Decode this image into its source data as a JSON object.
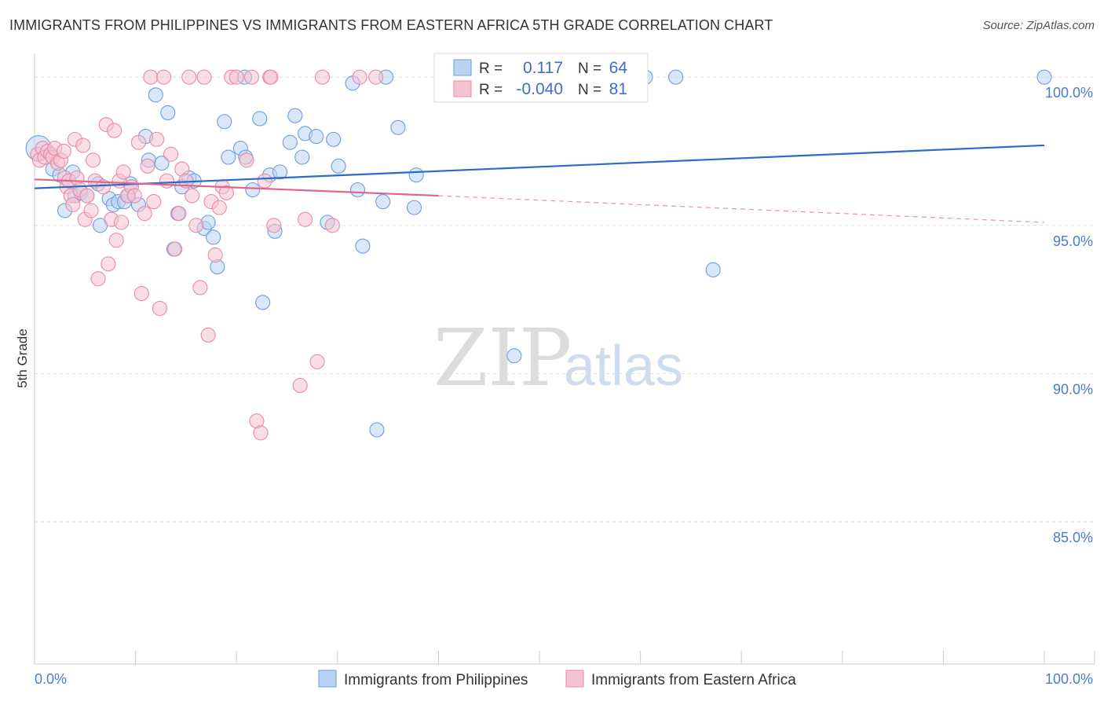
{
  "chart_data": {
    "type": "scatter",
    "title": "IMMIGRANTS FROM PHILIPPINES VS IMMIGRANTS FROM EASTERN AFRICA 5TH GRADE CORRELATION CHART",
    "source": "Source: ZipAtlas.com",
    "xlabel": "",
    "ylabel": "5th Grade",
    "xlim": [
      0,
      100
    ],
    "ylim": [
      80.2,
      100.8
    ],
    "x_tick_labels": [
      "0.0%",
      "100.0%"
    ],
    "y_ticks": [
      85,
      90,
      95,
      100
    ],
    "y_tick_labels": [
      "85.0%",
      "90.0%",
      "95.0%",
      "100.0%"
    ],
    "grid": true,
    "legend": {
      "position": "top-center",
      "rows": [
        {
          "r_label": "R =",
          "r_value": "0.117",
          "n_label": "N =",
          "n_value": "64"
        },
        {
          "r_label": "R =",
          "r_value": "-0.040",
          "n_label": "N =",
          "n_value": "81"
        }
      ]
    },
    "series": [
      {
        "name": "Immigrants from Philippines",
        "color": "#6b9ee0",
        "fill": "#bad3f2",
        "trend_color": "#2b6cc7",
        "trend": {
          "x": [
            0,
            100
          ],
          "y": [
            96.25,
            97.7
          ]
        },
        "points": [
          [
            0.4,
            97.6
          ],
          [
            1.8,
            96.9
          ],
          [
            2.5,
            96.7
          ],
          [
            3.0,
            95.5
          ],
          [
            3.8,
            96.8
          ],
          [
            4.0,
            96.0
          ],
          [
            4.6,
            96.1
          ],
          [
            5.2,
            96.0
          ],
          [
            6.3,
            96.4
          ],
          [
            6.5,
            95.0
          ],
          [
            7.4,
            95.9
          ],
          [
            7.8,
            95.7
          ],
          [
            8.3,
            95.8
          ],
          [
            8.9,
            95.8
          ],
          [
            9.3,
            96.0
          ],
          [
            9.5,
            96.4
          ],
          [
            10.3,
            95.7
          ],
          [
            11.0,
            98.0
          ],
          [
            11.3,
            97.2
          ],
          [
            12.0,
            99.4
          ],
          [
            12.6,
            97.1
          ],
          [
            13.2,
            98.8
          ],
          [
            13.8,
            94.2
          ],
          [
            14.2,
            95.4
          ],
          [
            14.6,
            96.3
          ],
          [
            15.3,
            96.6
          ],
          [
            15.8,
            96.5
          ],
          [
            16.8,
            94.9
          ],
          [
            17.2,
            95.1
          ],
          [
            17.7,
            94.6
          ],
          [
            18.1,
            93.6
          ],
          [
            18.8,
            98.5
          ],
          [
            19.2,
            97.3
          ],
          [
            20.4,
            97.6
          ],
          [
            20.8,
            100.0
          ],
          [
            20.9,
            97.3
          ],
          [
            21.6,
            96.2
          ],
          [
            22.3,
            98.6
          ],
          [
            22.6,
            92.4
          ],
          [
            23.3,
            96.7
          ],
          [
            23.8,
            94.8
          ],
          [
            24.3,
            96.8
          ],
          [
            25.3,
            97.8
          ],
          [
            25.8,
            98.7
          ],
          [
            26.5,
            97.3
          ],
          [
            26.8,
            98.1
          ],
          [
            27.9,
            98.0
          ],
          [
            29.0,
            95.1
          ],
          [
            29.6,
            97.9
          ],
          [
            30.1,
            97.0
          ],
          [
            31.5,
            99.8
          ],
          [
            32.0,
            96.2
          ],
          [
            32.5,
            94.3
          ],
          [
            33.9,
            88.1
          ],
          [
            34.5,
            95.8
          ],
          [
            34.8,
            100.0
          ],
          [
            36.0,
            98.3
          ],
          [
            37.8,
            96.7
          ],
          [
            37.6,
            95.6
          ],
          [
            47.5,
            90.6
          ],
          [
            60.5,
            100.0
          ],
          [
            63.5,
            100.0
          ],
          [
            67.2,
            93.5
          ],
          [
            100.0,
            100.0
          ]
        ]
      },
      {
        "name": "Immigrants from Eastern Africa",
        "color": "#e98aa6",
        "fill": "#f5c2d2",
        "trend_color": "#e0648e",
        "trend": {
          "x": [
            0,
            40
          ],
          "y": [
            96.55,
            96.0
          ]
        },
        "trend_dashed": {
          "x": [
            40,
            100
          ],
          "y": [
            96.0,
            95.1
          ]
        },
        "points": [
          [
            0.3,
            97.4
          ],
          [
            0.5,
            97.2
          ],
          [
            0.8,
            97.6
          ],
          [
            1.0,
            97.3
          ],
          [
            1.3,
            97.5
          ],
          [
            1.6,
            97.4
          ],
          [
            1.8,
            97.3
          ],
          [
            2.0,
            97.6
          ],
          [
            2.3,
            97.1
          ],
          [
            2.6,
            97.2
          ],
          [
            2.9,
            97.5
          ],
          [
            3.0,
            96.6
          ],
          [
            3.2,
            96.3
          ],
          [
            3.4,
            96.5
          ],
          [
            3.6,
            96.0
          ],
          [
            3.8,
            95.7
          ],
          [
            4.0,
            97.9
          ],
          [
            4.2,
            96.6
          ],
          [
            4.5,
            96.2
          ],
          [
            4.8,
            97.7
          ],
          [
            5.0,
            95.2
          ],
          [
            5.2,
            96.0
          ],
          [
            5.6,
            95.5
          ],
          [
            5.8,
            97.2
          ],
          [
            6.0,
            96.5
          ],
          [
            6.3,
            93.2
          ],
          [
            6.8,
            96.3
          ],
          [
            7.1,
            98.4
          ],
          [
            7.3,
            93.7
          ],
          [
            7.6,
            95.2
          ],
          [
            7.9,
            98.2
          ],
          [
            8.1,
            94.5
          ],
          [
            8.4,
            96.5
          ],
          [
            8.6,
            95.1
          ],
          [
            8.8,
            96.8
          ],
          [
            9.2,
            96.0
          ],
          [
            9.6,
            96.3
          ],
          [
            9.9,
            96.0
          ],
          [
            10.3,
            97.8
          ],
          [
            10.6,
            92.7
          ],
          [
            10.9,
            95.4
          ],
          [
            11.2,
            97.0
          ],
          [
            11.5,
            100.0
          ],
          [
            11.8,
            95.8
          ],
          [
            12.1,
            97.9
          ],
          [
            12.4,
            92.2
          ],
          [
            12.8,
            100.0
          ],
          [
            13.1,
            96.5
          ],
          [
            13.5,
            97.4
          ],
          [
            13.9,
            94.2
          ],
          [
            14.3,
            95.4
          ],
          [
            14.6,
            96.9
          ],
          [
            15.0,
            96.5
          ],
          [
            15.3,
            100.0
          ],
          [
            15.6,
            96.0
          ],
          [
            16.0,
            95.0
          ],
          [
            16.4,
            92.9
          ],
          [
            16.8,
            100.0
          ],
          [
            17.2,
            91.3
          ],
          [
            17.5,
            95.8
          ],
          [
            17.9,
            94.0
          ],
          [
            18.3,
            95.6
          ],
          [
            18.6,
            96.3
          ],
          [
            19.0,
            96.1
          ],
          [
            19.5,
            100.0
          ],
          [
            20.0,
            100.0
          ],
          [
            21.0,
            97.2
          ],
          [
            21.5,
            100.0
          ],
          [
            22.0,
            88.4
          ],
          [
            22.4,
            88.0
          ],
          [
            22.8,
            96.5
          ],
          [
            23.3,
            100.0
          ],
          [
            23.7,
            95.0
          ],
          [
            23.4,
            100.0
          ],
          [
            26.3,
            89.6
          ],
          [
            26.8,
            95.2
          ],
          [
            28.0,
            90.4
          ],
          [
            28.5,
            100.0
          ],
          [
            33.8,
            100.0
          ],
          [
            29.5,
            95.0
          ],
          [
            32.2,
            100.0
          ]
        ]
      }
    ],
    "bottom_legend": [
      "Immigrants from Philippines",
      "Immigrants from Eastern Africa"
    ],
    "watermark": {
      "zip": "ZIP",
      "atlas": "atlas"
    }
  }
}
